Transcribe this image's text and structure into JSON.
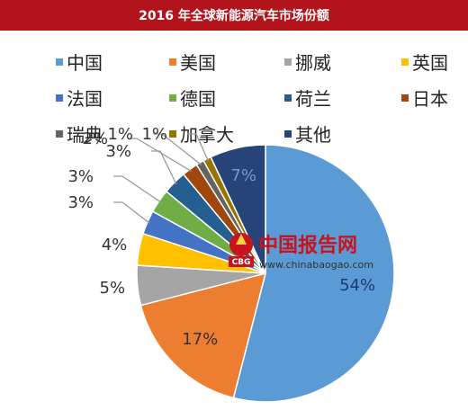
{
  "chart_data": {
    "type": "pie",
    "title": "2016 年全球新能源汽车市场份额",
    "categories": [
      "中国",
      "美国",
      "挪威",
      "英国",
      "法国",
      "德国",
      "荷兰",
      "日本",
      "瑞典",
      "加拿大",
      "其他"
    ],
    "values": [
      54,
      17,
      5,
      4,
      3,
      3,
      3,
      2,
      1,
      1,
      7
    ],
    "labels": [
      "54%",
      "17%",
      "5%",
      "4%",
      "3%",
      "3%",
      "3%",
      "2%",
      "1%",
      "1%",
      "7%"
    ],
    "colors": [
      "#5b9bd5",
      "#ed7d31",
      "#a5a5a5",
      "#ffc000",
      "#4472c4",
      "#70ad47",
      "#255e91",
      "#9e480e",
      "#636363",
      "#997300",
      "#264478"
    ],
    "legend_position": "top"
  },
  "watermark": {
    "brand": "中国报告网",
    "url": "www.chinabaogao.com",
    "logo_text": "CBG"
  }
}
